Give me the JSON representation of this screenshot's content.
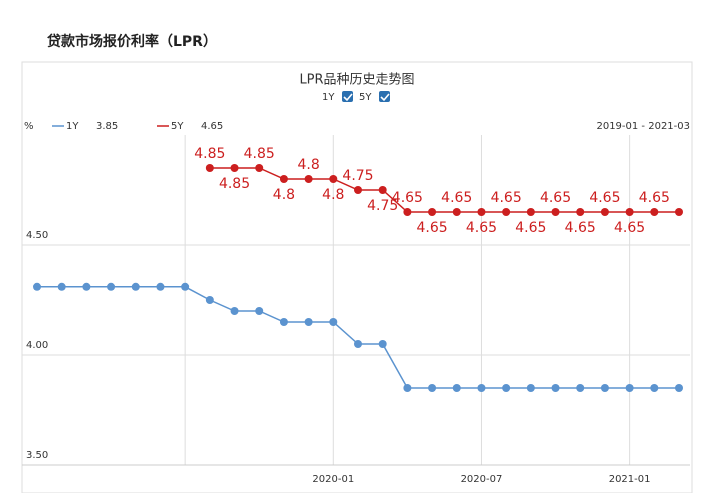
{
  "page_title": "贷款市场报价利率（LPR）",
  "chart_data": {
    "type": "line",
    "title": "LPR品种历史走势图",
    "y_unit": "%",
    "range_label": "2019-01 - 2021-03",
    "categories": [
      null,
      null,
      null,
      null,
      null,
      null,
      null,
      null,
      null,
      null,
      null,
      null,
      "2020-01",
      null,
      null,
      null,
      null,
      null,
      "2020-07",
      null,
      null,
      null,
      null,
      null,
      "2021-01",
      null,
      null
    ],
    "series": [
      {
        "name": "1Y",
        "color": "#5b93cf",
        "values": [
          4.31,
          4.31,
          4.31,
          4.31,
          4.31,
          4.31,
          4.31,
          4.25,
          4.2,
          4.2,
          4.15,
          4.15,
          4.15,
          4.05,
          4.05,
          3.85,
          3.85,
          3.85,
          3.85,
          3.85,
          3.85,
          3.85,
          3.85,
          3.85,
          3.85,
          3.85,
          3.85
        ]
      },
      {
        "name": "5Y",
        "color": "#cc1f1f",
        "values": [
          null,
          null,
          null,
          null,
          null,
          null,
          null,
          4.85,
          4.85,
          4.85,
          4.8,
          4.8,
          4.8,
          4.75,
          4.75,
          4.65,
          4.65,
          4.65,
          4.65,
          4.65,
          4.65,
          4.65,
          4.65,
          4.65,
          4.65,
          4.65,
          4.65
        ]
      }
    ],
    "ylim": [
      3.5,
      5.0
    ],
    "yticks": [
      {
        "value": 3.5,
        "label": "3.50"
      },
      {
        "value": 4.0,
        "label": "4.00"
      },
      {
        "value": 4.5,
        "label": "4.50"
      }
    ],
    "grid": true
  }
}
